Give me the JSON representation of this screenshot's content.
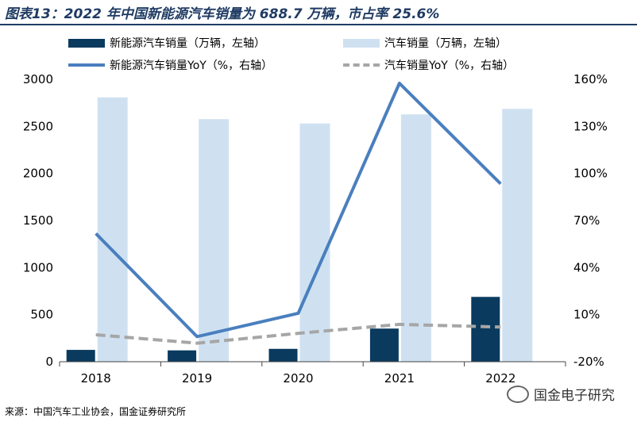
{
  "title": "图表13：2022 年中国新能源汽车销量为 688.7 万辆，市占率 25.6%",
  "source": "来源：中国汽车工业协会，国金证券研究所",
  "watermark": "国金电子研究",
  "colors": {
    "nev_bar": "#0a3a5e",
    "auto_bar": "#cfe1f1",
    "nev_yoy": "#4a7fbf",
    "auto_yoy": "#a6a6a6",
    "title": "#1f3b63"
  },
  "chart_data": {
    "type": "bar+line",
    "categories": [
      "2018",
      "2019",
      "2020",
      "2021",
      "2022"
    ],
    "y_left": {
      "ylim": [
        0,
        3000
      ],
      "ticks": [
        "0",
        "500",
        "1000",
        "1500",
        "2000",
        "2500",
        "3000"
      ],
      "tick_values": [
        0,
        500,
        1000,
        1500,
        2000,
        2500,
        3000
      ]
    },
    "y_right": {
      "ylim": [
        -20,
        160
      ],
      "ticks": [
        "-20%",
        "10%",
        "40%",
        "70%",
        "100%",
        "130%",
        "160%"
      ],
      "tick_values": [
        -20,
        10,
        40,
        70,
        100,
        130,
        160
      ]
    },
    "series": [
      {
        "name": "新能源汽车销量（万辆，左轴）",
        "kind": "bar",
        "axis": "left",
        "values": [
          125.6,
          120.6,
          136.7,
          352.1,
          688.7
        ]
      },
      {
        "name": "汽车销量（万辆，左轴）",
        "kind": "bar",
        "axis": "left",
        "values": [
          2808.1,
          2576.9,
          2531.1,
          2627.5,
          2686.4
        ]
      },
      {
        "name": "新能源汽车销量YoY（%，右轴）",
        "kind": "line",
        "axis": "right",
        "values": [
          61.7,
          -4.0,
          10.9,
          157.5,
          93.4
        ]
      },
      {
        "name": "汽车销量YoY（%，右轴）",
        "kind": "line",
        "axis": "right",
        "values": [
          -2.8,
          -8.2,
          -1.9,
          3.8,
          2.1
        ]
      }
    ]
  }
}
